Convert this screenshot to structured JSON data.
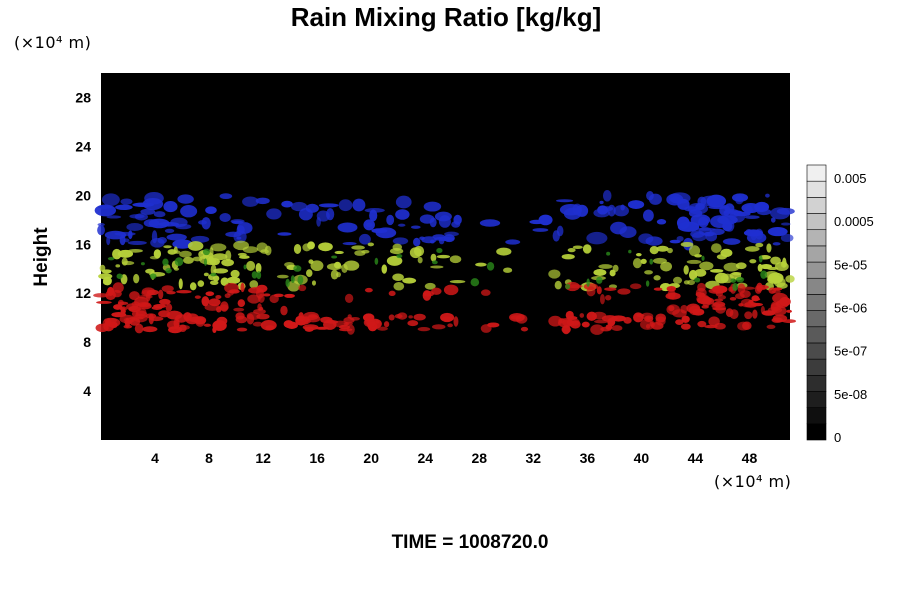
{
  "chart_data": {
    "type": "heatmap",
    "title": "Rain Mixing Ratio [kg/kg]",
    "ylabel": "Height",
    "xlabel": "",
    "x_unit": "(×10⁴ m)",
    "y_unit": "(×10⁴ m)",
    "x_ticks": [
      4,
      8,
      12,
      16,
      20,
      24,
      28,
      32,
      36,
      40,
      44,
      48
    ],
    "y_ticks": [
      4,
      8,
      12,
      16,
      20,
      24,
      28
    ],
    "xlim": [
      0,
      51
    ],
    "ylim": [
      0,
      30
    ],
    "background_color": "#000000",
    "layers": [
      {
        "color": "#1f2fd0",
        "y_range": [
          16,
          20
        ]
      },
      {
        "color": "#b8d23a",
        "y_range": [
          12.5,
          16
        ]
      },
      {
        "color": "#d01818",
        "y_range": [
          9,
          12.5
        ]
      }
    ],
    "colorbar": {
      "labels": [
        "0.005",
        "0.0005",
        "5e-05",
        "5e-06",
        "5e-07",
        "5e-08",
        "0"
      ],
      "levels": 17
    },
    "time_label": "TIME = 1008720.0"
  }
}
